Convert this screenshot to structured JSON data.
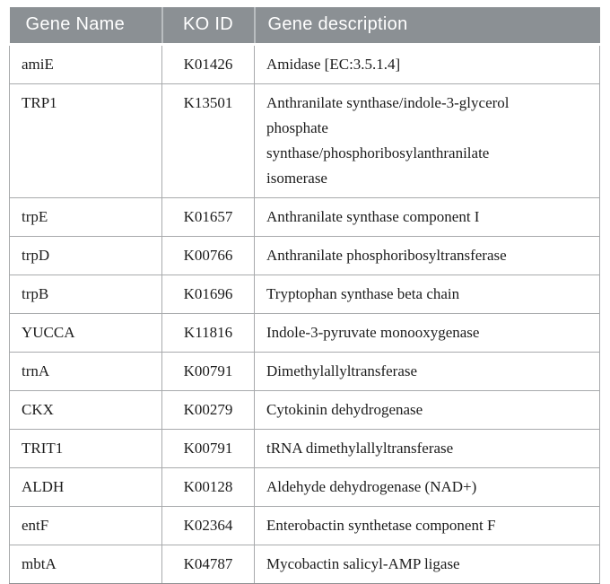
{
  "table": {
    "columns": [
      "Gene Name",
      "KO ID",
      "Gene description"
    ],
    "rows": [
      {
        "gene_name": "amiE",
        "ko_id": "K01426",
        "description": "Amidase [EC:3.5.1.4]"
      },
      {
        "gene_name": "TRP1",
        "ko_id": "K13501",
        "description": "Anthranilate synthase/indole-3-glycerol\nphosphate\nsynthase/phosphoribosylanthranilate\nisomerase"
      },
      {
        "gene_name": "trpE",
        "ko_id": "K01657",
        "description": "Anthranilate synthase component I"
      },
      {
        "gene_name": "trpD",
        "ko_id": "K00766",
        "description": "Anthranilate phosphoribosyltransferase"
      },
      {
        "gene_name": "trpB",
        "ko_id": "K01696",
        "description": "Tryptophan synthase beta chain"
      },
      {
        "gene_name": "YUCCA",
        "ko_id": "K11816",
        "description": "Indole-3-pyruvate monooxygenase"
      },
      {
        "gene_name": "trnA",
        "ko_id": "K00791",
        "description": "Dimethylallyltransferase"
      },
      {
        "gene_name": "CKX",
        "ko_id": "K00279",
        "description": "Cytokinin dehydrogenase"
      },
      {
        "gene_name": "TRIT1",
        "ko_id": "K00791",
        "description": "tRNA dimethylallyltransferase"
      },
      {
        "gene_name": "ALDH",
        "ko_id": "K00128",
        "description": "Aldehyde dehydrogenase (NAD+)"
      },
      {
        "gene_name": "entF",
        "ko_id": "K02364",
        "description": "Enterobactin synthetase component F"
      },
      {
        "gene_name": "mbtA",
        "ko_id": "K04787",
        "description": "Mycobactin salicyl-AMP ligase"
      }
    ]
  },
  "colors": {
    "header_bg": "#8b9094",
    "header_text": "#ffffff",
    "header_separator": "#b9bdc0",
    "border": "#a8aaac",
    "border_dark": "#8f9193",
    "body_text": "#1c1c1c",
    "page_bg": "#ffffff"
  }
}
